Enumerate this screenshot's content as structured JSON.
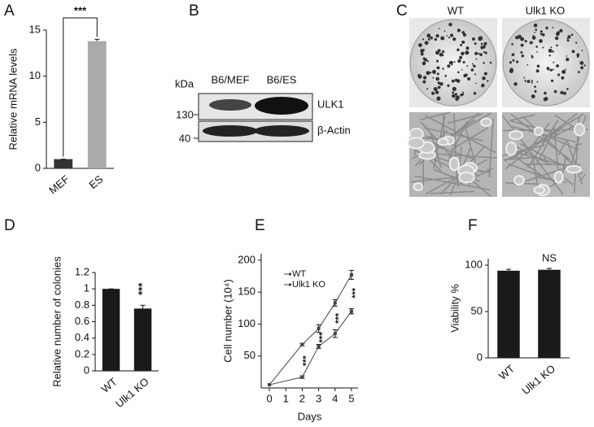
{
  "chart_data": [
    {
      "type": "bar",
      "panel": "A",
      "ylabel": "Relative mRNA levels",
      "categories": [
        "MEF",
        "ES"
      ],
      "values": [
        1,
        13.8
      ],
      "errors": [
        0,
        0.2
      ],
      "colors": [
        "#333333",
        "#aaaaaa"
      ],
      "ylim": [
        0,
        15
      ],
      "yticks": [
        0,
        5,
        10,
        15
      ],
      "annotations": [
        "***"
      ]
    },
    {
      "type": "bar",
      "panel": "D",
      "ylabel": "Relative number of colonies",
      "categories": [
        "WT",
        "Ulk1 KO"
      ],
      "values": [
        1,
        0.76
      ],
      "errors": [
        0,
        0.04
      ],
      "colors": [
        "#1a1a1a",
        "#1a1a1a"
      ],
      "ylim": [
        0,
        1.2
      ],
      "yticks": [
        0,
        0.2,
        0.4,
        0.6,
        0.8,
        1,
        1.2
      ],
      "annotations": [
        "***"
      ]
    },
    {
      "type": "line",
      "panel": "E",
      "ylabel": "Cell number (10⁴)",
      "xlabel": "Days",
      "x": [
        0,
        2,
        3,
        4,
        5
      ],
      "series": [
        {
          "name": "WT",
          "color": "#444444",
          "values": [
            5,
            68,
            93,
            133,
            177
          ],
          "errors": [
            0,
            2,
            6,
            5,
            7
          ]
        },
        {
          "name": "Ulk1 KO",
          "color": "#444444",
          "values": [
            5,
            17,
            65,
            85,
            120
          ],
          "errors": [
            0,
            2,
            3,
            6,
            4
          ]
        }
      ],
      "xlim": [
        -0.5,
        5.4
      ],
      "xticks": [
        0,
        1,
        2,
        3,
        4,
        5
      ],
      "ylim": [
        0,
        210
      ],
      "yticks": [
        50,
        100,
        150,
        200
      ],
      "annotations": [
        "***",
        "***",
        "***",
        "***"
      ]
    },
    {
      "type": "bar",
      "panel": "F",
      "ylabel": "Viability %",
      "categories": [
        "WT",
        "Ulk1 KO"
      ],
      "values": [
        94,
        95
      ],
      "errors": [
        1.5,
        1.5
      ],
      "colors": [
        "#1a1a1a",
        "#1a1a1a"
      ],
      "ylim": [
        0,
        107
      ],
      "yticks": [
        0,
        50,
        100
      ],
      "annotations": [
        "NS"
      ]
    }
  ],
  "blot": {
    "panel": "B",
    "unit": "kDa",
    "lanes": [
      "B6/MEF",
      "B6/ES"
    ],
    "markers": [
      "130",
      "40"
    ],
    "proteins": [
      "ULK1",
      "β-Actin"
    ]
  },
  "micrographs": {
    "panel": "C",
    "columns": [
      "WT",
      "Ulk1 KO"
    ]
  }
}
